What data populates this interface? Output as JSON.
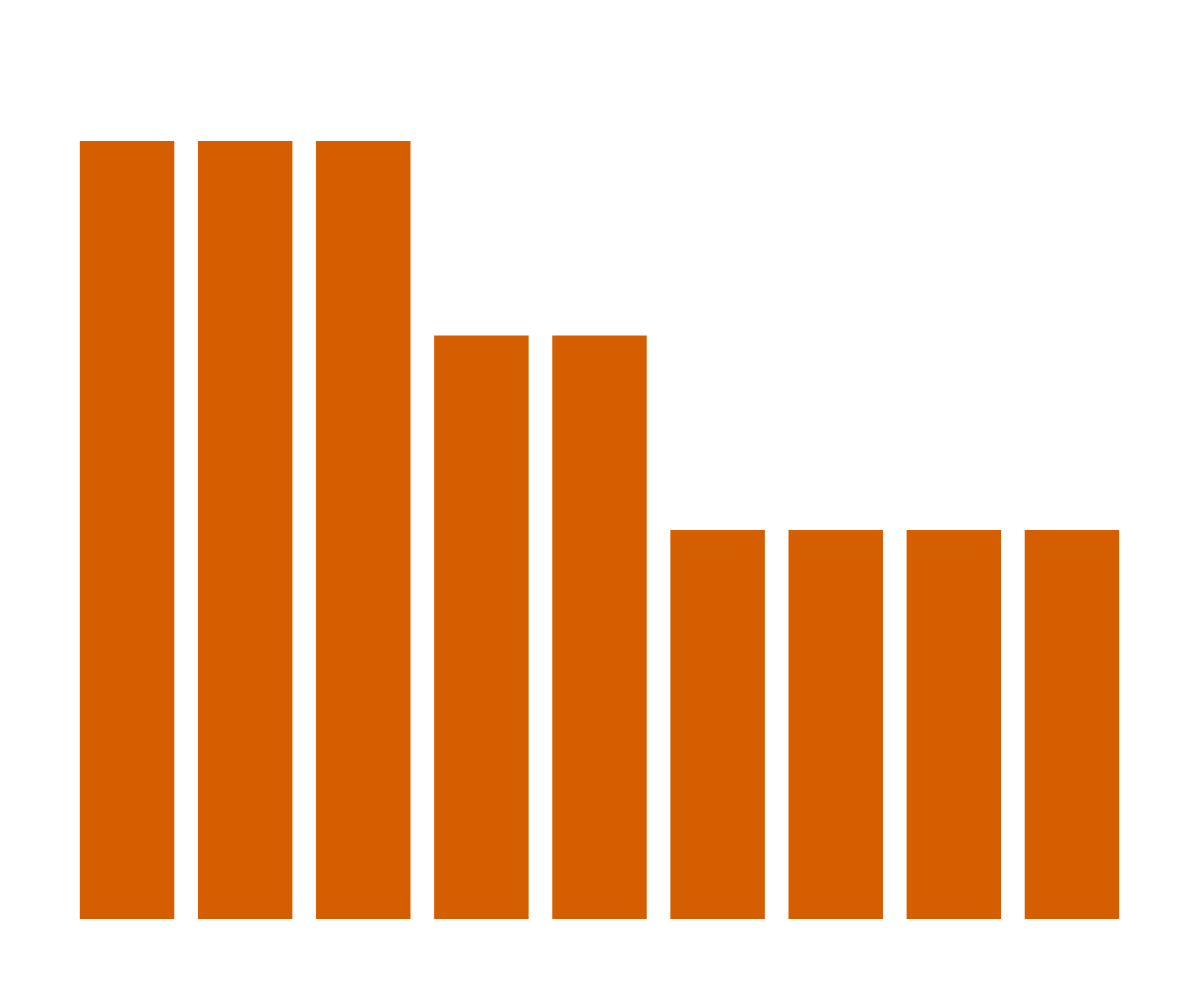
{
  "chart_data": {
    "type": "bar",
    "categories": [
      "",
      "",
      "",
      "",
      "",
      "",
      "",
      "",
      ""
    ],
    "values": [
      4,
      4,
      4,
      3,
      3,
      2,
      2,
      2,
      2
    ],
    "ylim": [
      0,
      4
    ],
    "grid": false,
    "axes_visible": false,
    "bar_color": "#d55e00"
  }
}
